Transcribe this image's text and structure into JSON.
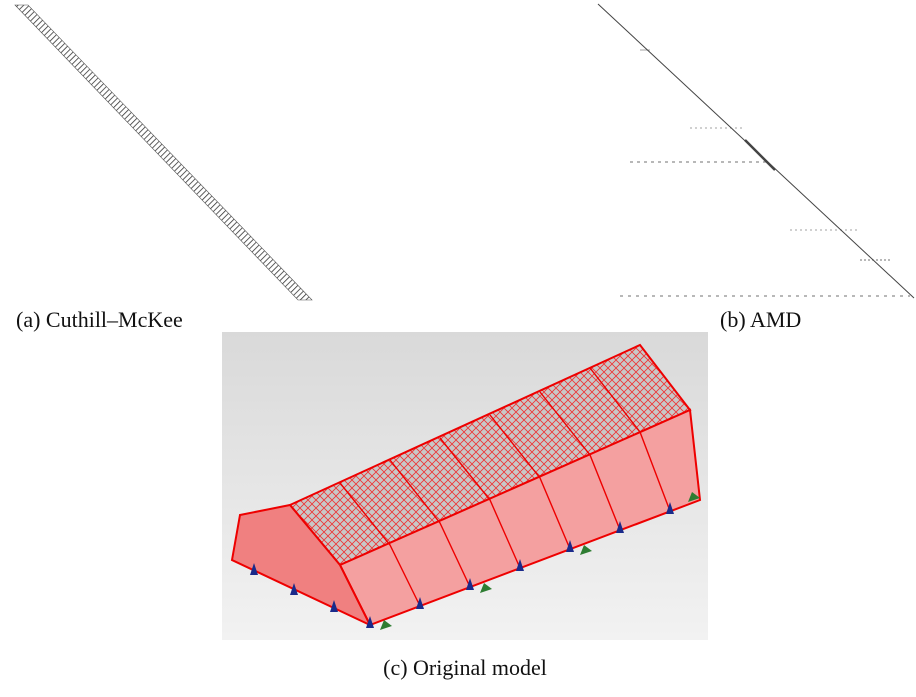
{
  "figure": {
    "subfigures": [
      {
        "caption": "(a) Cuthill–McKee"
      },
      {
        "caption": "(b) AMD"
      },
      {
        "caption": "(c) Original model"
      }
    ]
  }
}
